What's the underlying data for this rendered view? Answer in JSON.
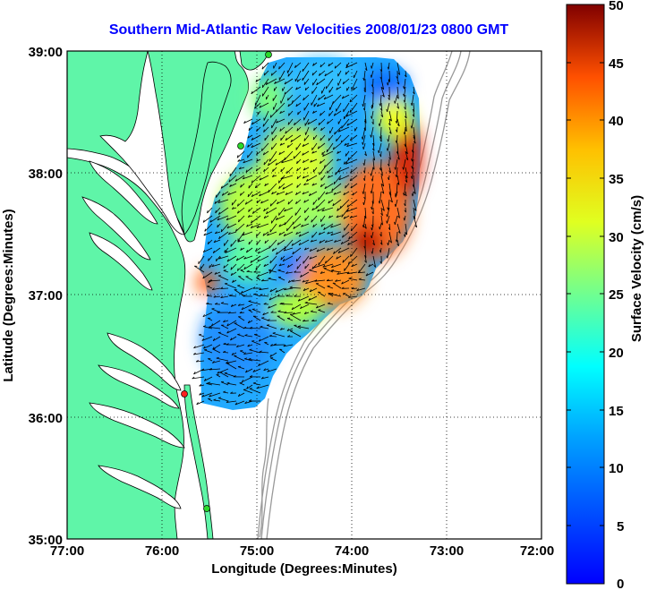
{
  "title": "Southern Mid-Atlantic Raw Velocities 2008/01/23 0800 GMT",
  "x_axis": {
    "label": "Longitude (Degrees:Minutes)",
    "ticks": [
      "77:00",
      "76:00",
      "75:00",
      "74:00",
      "73:00",
      "72:00"
    ]
  },
  "y_axis": {
    "label": "Latitude (Degrees:Minutes)",
    "ticks": [
      "39:00",
      "38:00",
      "37:00",
      "36:00",
      "35:00"
    ]
  },
  "colorbar": {
    "label": "Surface Velocity (cm/s)",
    "ticks": [
      "50",
      "45",
      "40",
      "35",
      "30",
      "25",
      "20",
      "15",
      "10",
      "5",
      "0"
    ],
    "range": [
      0,
      50
    ],
    "colormap": "jet"
  },
  "colors": {
    "land": "#5ff5a8",
    "water": "#ffffff",
    "coastline": "#000000",
    "bathymetry": "#999999",
    "grid": "#000000",
    "title": "#0000ff",
    "vectors": "#000000"
  },
  "stations": [
    {
      "name": "site-north",
      "color": "#2bd92b"
    },
    {
      "name": "site-mid-north",
      "color": "#2bd92b"
    },
    {
      "name": "site-south-red",
      "color": "#ff2020"
    },
    {
      "name": "site-south",
      "color": "#2bd92b"
    }
  ],
  "grid_style": "dotted"
}
